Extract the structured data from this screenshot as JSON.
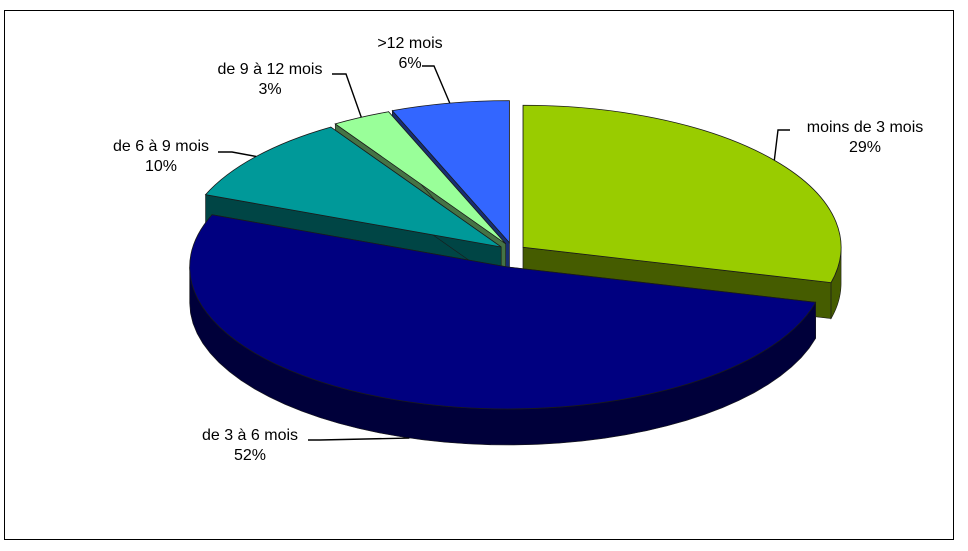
{
  "chart_data": {
    "type": "pie",
    "title": "",
    "slices": [
      {
        "label": "moins de 3 mois",
        "value": 29,
        "value_label": "29%",
        "color": "#99cc00"
      },
      {
        "label": "de 3 à 6 mois",
        "value": 52,
        "value_label": "52%",
        "color": "#000080"
      },
      {
        "label": "de 6 à 9 mois",
        "value": 10,
        "value_label": "10%",
        "color": "#009999"
      },
      {
        "label": "de 9 à 12 mois",
        "value": 3,
        "value_label": "3%",
        "color": "#99ff99"
      },
      {
        "label": ">12 mois",
        "value": 6,
        "value_label": "6%",
        "color": "#3366ff"
      }
    ],
    "style": "3d-exploded",
    "legend": "none"
  }
}
